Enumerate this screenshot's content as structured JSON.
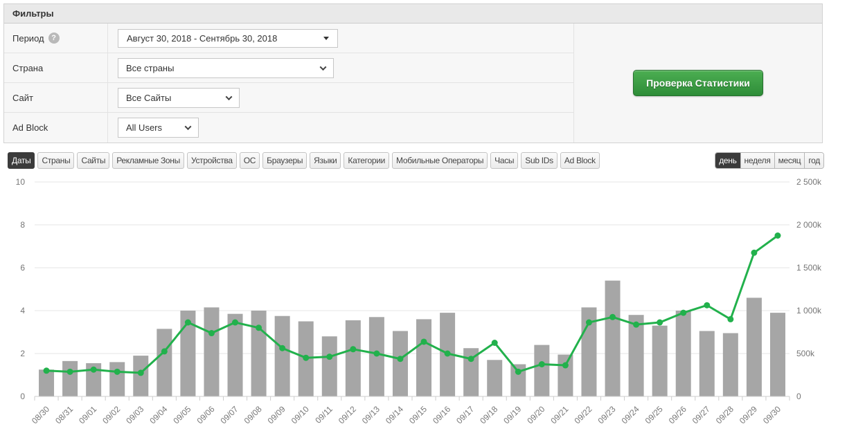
{
  "filters": {
    "title": "Фильтры",
    "help_icon_glyph": "?",
    "rows": [
      {
        "label": "Период",
        "control": {
          "type": "dropdown",
          "value": "Август 30, 2018 - Сентябрь 30, 2018"
        }
      },
      {
        "label": "Страна",
        "control": {
          "type": "select",
          "value": "Все страны"
        }
      },
      {
        "label": "Сайт",
        "control": {
          "type": "select",
          "value": "Все Сайты"
        }
      },
      {
        "label": "Ad Block",
        "control": {
          "type": "select",
          "value": "All Users"
        }
      }
    ],
    "action_button": "Проверка Статистики"
  },
  "tabs": {
    "items": [
      "Даты",
      "Страны",
      "Сайты",
      "Рекламные Зоны",
      "Устройства",
      "ОС",
      "Браузеры",
      "Языки",
      "Категории",
      "Мобильные Операторы",
      "Часы",
      "Sub IDs",
      "Ad Block"
    ],
    "active": "Даты"
  },
  "period_switch": {
    "items": [
      "день",
      "неделя",
      "месяц",
      "год"
    ],
    "active": "день"
  },
  "colors": {
    "bar": "#a6a6a6",
    "line": "#22b14c",
    "grid": "#e6e6e6",
    "axis": "#cccccc",
    "axis_text": "#757575",
    "active_tab_bg": "#3b3b3b",
    "button_green_top": "#4cae52",
    "button_green_bottom": "#2e8d38"
  },
  "chart_data": {
    "type": "bar+line",
    "title": "",
    "grid": true,
    "legend": false,
    "categories": [
      "08/30",
      "08/31",
      "09/01",
      "09/02",
      "09/03",
      "09/04",
      "09/05",
      "09/06",
      "09/07",
      "09/08",
      "09/09",
      "09/10",
      "09/11",
      "09/12",
      "09/13",
      "09/14",
      "09/15",
      "09/16",
      "09/17",
      "09/18",
      "09/19",
      "09/20",
      "09/21",
      "09/22",
      "09/23",
      "09/24",
      "09/25",
      "09/26",
      "09/27",
      "09/28",
      "09/29",
      "09/30"
    ],
    "left_axis": {
      "ticks": [
        0,
        2,
        4,
        6,
        8,
        10
      ],
      "range": [
        0,
        10
      ]
    },
    "right_axis": {
      "tick_labels": [
        "0",
        "500k",
        "1 000k",
        "1 500k",
        "2 000k",
        "2 500k"
      ],
      "range_k": [
        0,
        2500
      ]
    },
    "series": [
      {
        "name": "bars",
        "type": "bar",
        "axis": "left",
        "values": [
          1.25,
          1.65,
          1.55,
          1.6,
          1.9,
          3.15,
          4.0,
          4.15,
          3.85,
          4.0,
          3.75,
          3.5,
          2.8,
          3.55,
          3.7,
          3.05,
          3.6,
          3.9,
          2.25,
          1.7,
          1.5,
          2.4,
          1.95,
          4.15,
          5.4,
          3.8,
          3.3,
          4.0,
          3.05,
          2.95,
          4.6,
          3.9
        ]
      },
      {
        "name": "line",
        "type": "line",
        "axis": "right",
        "values_left_units": [
          1.2,
          1.15,
          1.25,
          1.15,
          1.1,
          2.1,
          3.45,
          2.95,
          3.45,
          3.2,
          2.25,
          1.8,
          1.85,
          2.2,
          2.0,
          1.75,
          2.55,
          2.0,
          1.75,
          2.5,
          1.15,
          1.5,
          1.45,
          3.45,
          3.7,
          3.35,
          3.45,
          3.9,
          4.25,
          3.6,
          6.7,
          7.5
        ],
        "values_k": [
          300,
          288,
          313,
          288,
          275,
          525,
          863,
          738,
          863,
          800,
          563,
          450,
          463,
          550,
          500,
          438,
          638,
          500,
          438,
          625,
          288,
          375,
          363,
          863,
          925,
          838,
          863,
          975,
          1063,
          900,
          1675,
          1875
        ]
      }
    ]
  }
}
